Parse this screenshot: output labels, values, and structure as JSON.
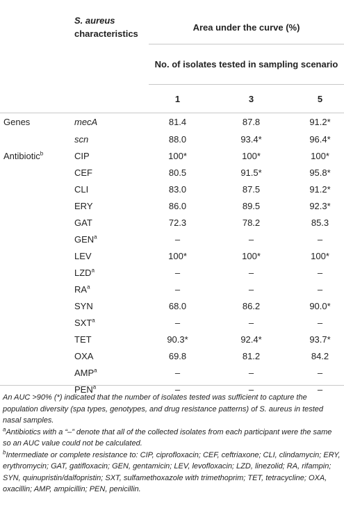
{
  "header": {
    "characteristics_italic": "S. aureus",
    "characteristics_rest": "characteristics",
    "area_title": "Area under the curve (%)",
    "isolates_title": "No. of isolates tested in sampling scenario",
    "col1": "1",
    "col3": "3",
    "col5": "5"
  },
  "rows": [
    {
      "group": "Genes",
      "group_sup": "",
      "name": "mecA",
      "name_sup": "",
      "v1": "81.4",
      "v3": "87.8",
      "v5": "91.2*"
    },
    {
      "group": "",
      "group_sup": "",
      "name": "scn",
      "name_sup": "",
      "v1": "88.0",
      "v3": "93.4*",
      "v5": "96.4*"
    },
    {
      "group": "Antibiotic",
      "group_sup": "b",
      "name": "CIP",
      "name_sup": "",
      "v1": "100*",
      "v3": "100*",
      "v5": "100*"
    },
    {
      "group": "",
      "group_sup": "",
      "name": "CEF",
      "name_sup": "",
      "v1": "80.5",
      "v3": "91.5*",
      "v5": "95.8*"
    },
    {
      "group": "",
      "group_sup": "",
      "name": "CLI",
      "name_sup": "",
      "v1": "83.0",
      "v3": "87.5",
      "v5": "91.2*"
    },
    {
      "group": "",
      "group_sup": "",
      "name": "ERY",
      "name_sup": "",
      "v1": "86.0",
      "v3": "89.5",
      "v5": "92.3*"
    },
    {
      "group": "",
      "group_sup": "",
      "name": "GAT",
      "name_sup": "",
      "v1": "72.3",
      "v3": "78.2",
      "v5": "85.3"
    },
    {
      "group": "",
      "group_sup": "",
      "name": "GEN",
      "name_sup": "a",
      "v1": "–",
      "v3": "–",
      "v5": "–"
    },
    {
      "group": "",
      "group_sup": "",
      "name": "LEV",
      "name_sup": "",
      "v1": "100*",
      "v3": "100*",
      "v5": "100*"
    },
    {
      "group": "",
      "group_sup": "",
      "name": "LZD",
      "name_sup": "a",
      "v1": "–",
      "v3": "–",
      "v5": "–"
    },
    {
      "group": "",
      "group_sup": "",
      "name": "RA",
      "name_sup": "a",
      "v1": "–",
      "v3": "–",
      "v5": "–"
    },
    {
      "group": "",
      "group_sup": "",
      "name": "SYN",
      "name_sup": "",
      "v1": "68.0",
      "v3": "86.2",
      "v5": "90.0*"
    },
    {
      "group": "",
      "group_sup": "",
      "name": "SXT",
      "name_sup": "a",
      "v1": "–",
      "v3": "–",
      "v5": "–"
    },
    {
      "group": "",
      "group_sup": "",
      "name": "TET",
      "name_sup": "",
      "v1": "90.3*",
      "v3": "92.4*",
      "v5": "93.7*"
    },
    {
      "group": "",
      "group_sup": "",
      "name": "OXA",
      "name_sup": "",
      "v1": "69.8",
      "v3": "81.2",
      "v5": "84.2"
    },
    {
      "group": "",
      "group_sup": "",
      "name": "AMP",
      "name_sup": "a",
      "v1": "–",
      "v3": "–",
      "v5": "–"
    },
    {
      "group": "",
      "group_sup": "",
      "name": "PEN",
      "name_sup": "a",
      "v1": "–",
      "v3": "–",
      "v5": "–"
    }
  ],
  "notes": {
    "main": "An AUC >90% (*) indicated that the number of isolates tested was sufficient to capture the population diversity (spa types, genotypes, and drug resistance patterns) of S. aureus in tested nasal samples.",
    "a_mark": "a",
    "a_text": "Antibiotics with a “–” denote that all of the collected isolates from each participant were the same so an AUC value could not be calculated.",
    "b_mark": "b",
    "b_text": "Intermediate or complete resistance to: CIP, ciprofloxacin; CEF, ceftriaxone; CLI, clindamycin; ERY, erythromycin; GAT, gatifloxacin; GEN, gentamicin; LEV, levofloxacin; LZD, linezolid; RA, rifampin; SYN, quinupristin/dalfopristin; SXT, sulfamethoxazole with trimethoprim; TET, tetracycline; OXA, oxacillin; AMP, ampicillin; PEN, penicillin."
  }
}
